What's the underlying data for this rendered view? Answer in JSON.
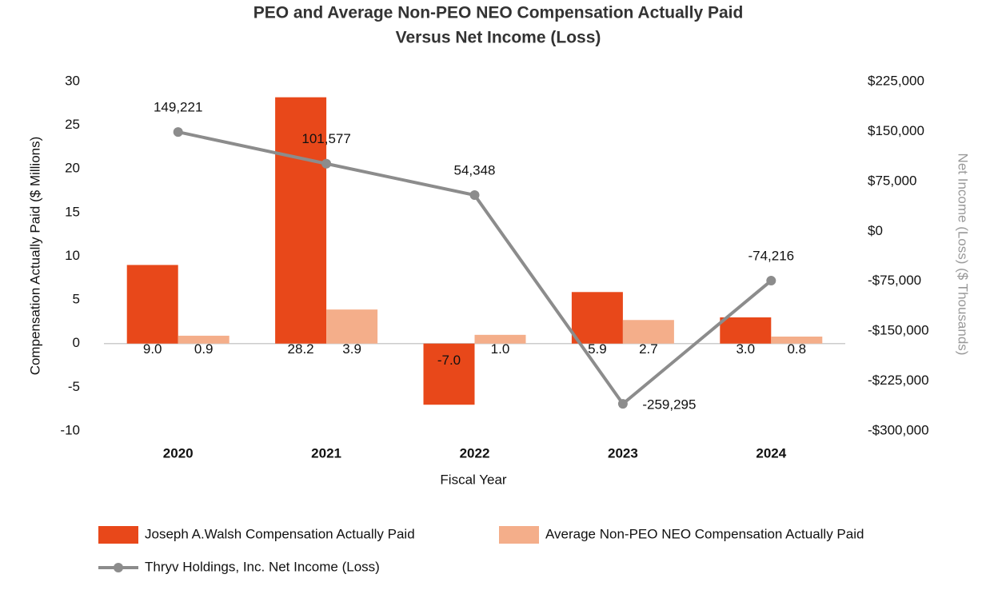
{
  "chart_data": {
    "type": "bar",
    "title": [
      "PEO and Average Non-PEO NEO Compensation Actually Paid",
      "Versus Net Income (Loss)"
    ],
    "x_label": "Fiscal Year",
    "y_label": "Compensation Actually Paid ($ Millions)",
    "y2_label": "Net Income (Loss) ($ Thousands)",
    "categories": [
      "2020",
      "2021",
      "2022",
      "2023",
      "2024"
    ],
    "ylim": [
      -10,
      30
    ],
    "yticks": [
      30,
      25,
      20,
      15,
      10,
      5,
      0,
      -5,
      -10
    ],
    "y2lim": [
      -300000,
      225000
    ],
    "y2ticks": [
      {
        "value": 225000,
        "label": "$225,000"
      },
      {
        "value": 150000,
        "label": "$150,000"
      },
      {
        "value": 75000,
        "label": "$75,000"
      },
      {
        "value": 0,
        "label": "$0"
      },
      {
        "value": -75000,
        "label": "-$75,000"
      },
      {
        "value": -150000,
        "label": "-$150,000"
      },
      {
        "value": -225000,
        "label": "-$225,000"
      },
      {
        "value": -300000,
        "label": "-$300,000"
      }
    ],
    "series": [
      {
        "name": "Joseph A.Walsh Compensation Actually Paid",
        "type": "bar",
        "color": "#e8481a",
        "values": [
          9.0,
          28.2,
          -7.0,
          5.9,
          3.0
        ],
        "value_labels": [
          "9.0",
          "28.2",
          "-7.0",
          "5.9",
          "3.0"
        ]
      },
      {
        "name": "Average Non-PEO NEO Compensation Actually Paid",
        "type": "bar",
        "color": "#f4ae8a",
        "values": [
          0.9,
          3.9,
          1.0,
          2.7,
          0.8
        ],
        "value_labels": [
          "0.9",
          "3.9",
          "1.0",
          "2.7",
          "0.8"
        ]
      },
      {
        "name": "Thryv Holdings, Inc. Net Income (Loss)",
        "type": "line",
        "axis": "y2",
        "color": "#8c8c8c",
        "values": [
          149221,
          101577,
          54348,
          -259295,
          -74216
        ],
        "value_labels": [
          "149,221",
          "101,577",
          "54,348",
          "-259,295",
          "-74,216"
        ]
      }
    ]
  }
}
